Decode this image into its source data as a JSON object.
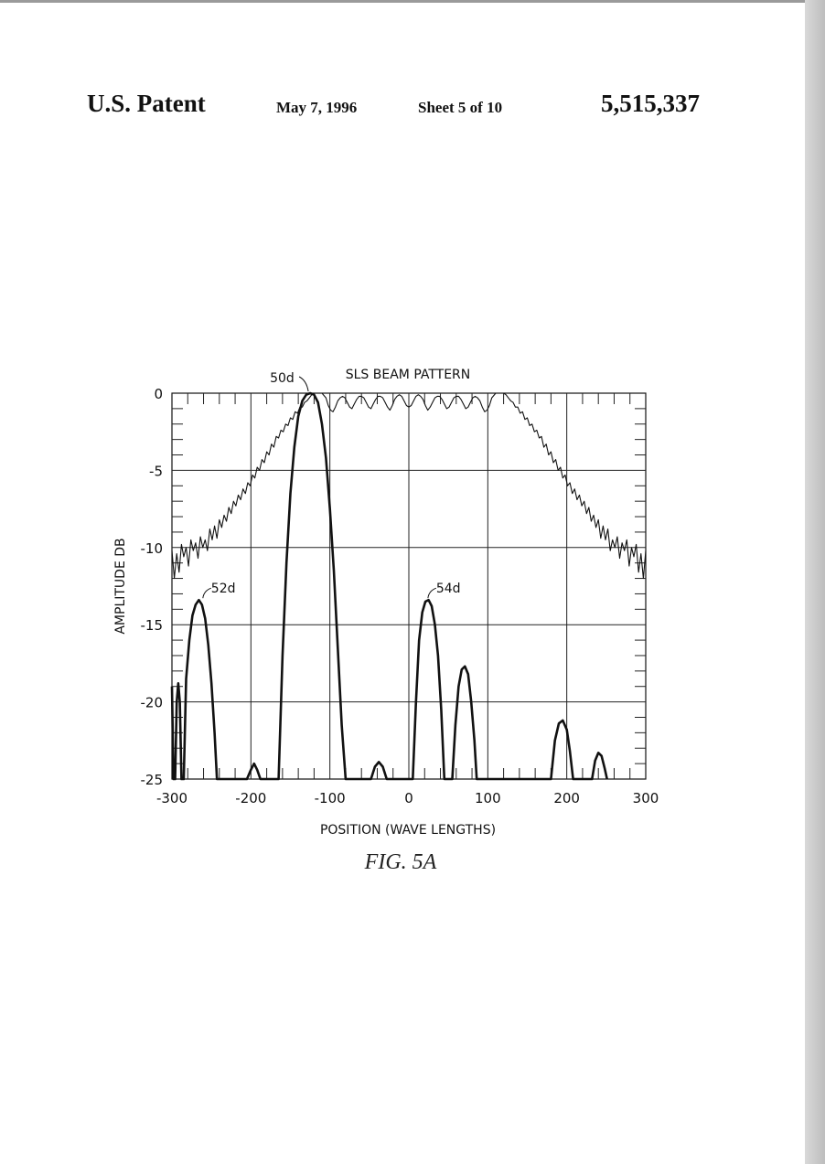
{
  "header": {
    "patent_label": "U.S. Patent",
    "date": "May 7, 1996",
    "sheet": "Sheet 5 of 10",
    "patent_number": "5,515,337"
  },
  "figure": {
    "label": "FIG.  5A",
    "callouts": [
      {
        "text": "50d",
        "x": -125,
        "y": 0
      },
      {
        "text": "52d",
        "x": -262,
        "y": -13.4
      },
      {
        "text": "54d",
        "x": 23,
        "y": -13.4
      }
    ]
  },
  "chart_data": {
    "type": "line",
    "title": "SLS BEAM PATTERN",
    "xlabel": "POSITION (WAVE LENGTHS)",
    "ylabel": "AMPLITUDE DB",
    "xlim": [
      -300,
      300
    ],
    "ylim": [
      -25,
      0
    ],
    "xticks": [
      -300,
      -200,
      -100,
      0,
      100,
      200,
      300
    ],
    "yticks": [
      0,
      -5,
      -10,
      -15,
      -20,
      -25
    ],
    "xtick_labels": [
      "-300",
      "-200",
      "-100",
      "0",
      "100",
      "200",
      "300"
    ],
    "ytick_labels": [
      "0",
      "-5",
      "-10",
      "-15",
      "-20",
      "-25"
    ],
    "grid": true,
    "series": [
      {
        "line_width": "thin",
        "points": [
          [
            -300,
            -10.2
          ],
          [
            -297,
            -12.0
          ],
          [
            -294,
            -10.4
          ],
          [
            -291,
            -11.6
          ],
          [
            -288,
            -9.8
          ],
          [
            -285,
            -10.6
          ],
          [
            -282,
            -10.0
          ],
          [
            -279,
            -11.2
          ],
          [
            -276,
            -9.5
          ],
          [
            -273,
            -10.2
          ],
          [
            -270,
            -9.7
          ],
          [
            -267,
            -10.7
          ],
          [
            -264,
            -9.3
          ],
          [
            -261,
            -10.0
          ],
          [
            -258,
            -9.5
          ],
          [
            -255,
            -10.2
          ],
          [
            -252,
            -8.8
          ],
          [
            -249,
            -9.5
          ],
          [
            -246,
            -8.6
          ],
          [
            -243,
            -9.4
          ],
          [
            -240,
            -8.2
          ],
          [
            -237,
            -8.7
          ],
          [
            -234,
            -7.9
          ],
          [
            -231,
            -8.3
          ],
          [
            -228,
            -7.4
          ],
          [
            -225,
            -7.8
          ],
          [
            -222,
            -7.0
          ],
          [
            -219,
            -7.3
          ],
          [
            -216,
            -6.6
          ],
          [
            -213,
            -6.9
          ],
          [
            -210,
            -6.2
          ],
          [
            -207,
            -6.5
          ],
          [
            -204,
            -5.8
          ],
          [
            -201,
            -6.0
          ],
          [
            -198,
            -5.3
          ],
          [
            -195,
            -5.5
          ],
          [
            -192,
            -4.8
          ],
          [
            -189,
            -5.0
          ],
          [
            -186,
            -4.3
          ],
          [
            -183,
            -4.5
          ],
          [
            -180,
            -3.8
          ],
          [
            -177,
            -4.0
          ],
          [
            -174,
            -3.3
          ],
          [
            -171,
            -3.5
          ],
          [
            -168,
            -2.8
          ],
          [
            -165,
            -2.9
          ],
          [
            -162,
            -2.4
          ],
          [
            -159,
            -2.5
          ],
          [
            -156,
            -2.0
          ],
          [
            -153,
            -2.1
          ],
          [
            -150,
            -1.6
          ],
          [
            -147,
            -1.7
          ],
          [
            -144,
            -1.2
          ],
          [
            -141,
            -1.3
          ],
          [
            -138,
            -0.9
          ],
          [
            -135,
            -0.9
          ],
          [
            -132,
            -0.6
          ],
          [
            -129,
            -0.5
          ],
          [
            -126,
            -0.3
          ],
          [
            -123,
            -0.1
          ],
          [
            -120,
            0.0
          ],
          [
            -110,
            0.0
          ],
          [
            -105,
            -0.3
          ],
          [
            -102,
            -0.8
          ],
          [
            -99,
            -1.1
          ],
          [
            -96,
            -1.2
          ],
          [
            -93,
            -0.9
          ],
          [
            -90,
            -0.5
          ],
          [
            -87,
            -0.3
          ],
          [
            -84,
            -0.2
          ],
          [
            -81,
            -0.3
          ],
          [
            -78,
            -0.6
          ],
          [
            -75,
            -0.9
          ],
          [
            -72,
            -1.0
          ],
          [
            -69,
            -0.7
          ],
          [
            -66,
            -0.4
          ],
          [
            -63,
            -0.2
          ],
          [
            -60,
            -0.2
          ],
          [
            -57,
            -0.3
          ],
          [
            -54,
            -0.6
          ],
          [
            -51,
            -0.9
          ],
          [
            -48,
            -1.0
          ],
          [
            -45,
            -0.7
          ],
          [
            -42,
            -0.4
          ],
          [
            -39,
            -0.2
          ],
          [
            -36,
            -0.2
          ],
          [
            -33,
            -0.3
          ],
          [
            -30,
            -0.6
          ],
          [
            -27,
            -0.9
          ],
          [
            -24,
            -1.1
          ],
          [
            -21,
            -0.8
          ],
          [
            -18,
            -0.4
          ],
          [
            -15,
            -0.2
          ],
          [
            -12,
            -0.1
          ],
          [
            -9,
            -0.2
          ],
          [
            -6,
            -0.5
          ],
          [
            -3,
            -0.8
          ],
          [
            0,
            -0.9
          ],
          [
            3,
            -0.8
          ],
          [
            6,
            -0.5
          ],
          [
            9,
            -0.2
          ],
          [
            12,
            -0.1
          ],
          [
            15,
            -0.2
          ],
          [
            18,
            -0.4
          ],
          [
            21,
            -0.8
          ],
          [
            24,
            -1.1
          ],
          [
            27,
            -0.9
          ],
          [
            30,
            -0.6
          ],
          [
            33,
            -0.3
          ],
          [
            36,
            -0.2
          ],
          [
            39,
            -0.2
          ],
          [
            42,
            -0.4
          ],
          [
            45,
            -0.7
          ],
          [
            48,
            -1.0
          ],
          [
            51,
            -0.9
          ],
          [
            54,
            -0.6
          ],
          [
            57,
            -0.3
          ],
          [
            60,
            -0.2
          ],
          [
            63,
            -0.2
          ],
          [
            66,
            -0.4
          ],
          [
            69,
            -0.7
          ],
          [
            72,
            -1.0
          ],
          [
            75,
            -0.9
          ],
          [
            78,
            -0.6
          ],
          [
            81,
            -0.3
          ],
          [
            84,
            -0.2
          ],
          [
            87,
            -0.3
          ],
          [
            90,
            -0.5
          ],
          [
            93,
            -0.9
          ],
          [
            96,
            -1.2
          ],
          [
            99,
            -1.1
          ],
          [
            102,
            -0.8
          ],
          [
            105,
            -0.3
          ],
          [
            110,
            0.0
          ],
          [
            120,
            0.0
          ],
          [
            123,
            -0.1
          ],
          [
            126,
            -0.3
          ],
          [
            129,
            -0.5
          ],
          [
            132,
            -0.6
          ],
          [
            135,
            -0.9
          ],
          [
            138,
            -0.9
          ],
          [
            141,
            -1.3
          ],
          [
            144,
            -1.2
          ],
          [
            147,
            -1.7
          ],
          [
            150,
            -1.6
          ],
          [
            153,
            -2.1
          ],
          [
            156,
            -2.0
          ],
          [
            159,
            -2.5
          ],
          [
            162,
            -2.4
          ],
          [
            165,
            -2.9
          ],
          [
            168,
            -2.8
          ],
          [
            171,
            -3.5
          ],
          [
            174,
            -3.3
          ],
          [
            177,
            -4.0
          ],
          [
            180,
            -3.8
          ],
          [
            183,
            -4.5
          ],
          [
            186,
            -4.3
          ],
          [
            189,
            -5.0
          ],
          [
            192,
            -4.8
          ],
          [
            195,
            -5.5
          ],
          [
            198,
            -5.3
          ],
          [
            201,
            -6.0
          ],
          [
            204,
            -5.8
          ],
          [
            207,
            -6.5
          ],
          [
            210,
            -6.2
          ],
          [
            213,
            -6.9
          ],
          [
            216,
            -6.6
          ],
          [
            219,
            -7.3
          ],
          [
            222,
            -7.0
          ],
          [
            225,
            -7.8
          ],
          [
            228,
            -7.4
          ],
          [
            231,
            -8.3
          ],
          [
            234,
            -7.9
          ],
          [
            237,
            -8.7
          ],
          [
            240,
            -8.2
          ],
          [
            243,
            -9.4
          ],
          [
            246,
            -8.6
          ],
          [
            249,
            -9.5
          ],
          [
            252,
            -8.8
          ],
          [
            255,
            -10.2
          ],
          [
            258,
            -9.5
          ],
          [
            261,
            -10.0
          ],
          [
            264,
            -9.3
          ],
          [
            267,
            -10.7
          ],
          [
            270,
            -9.7
          ],
          [
            273,
            -10.2
          ],
          [
            276,
            -9.5
          ],
          [
            279,
            -11.2
          ],
          [
            282,
            -10.0
          ],
          [
            285,
            -10.6
          ],
          [
            288,
            -9.8
          ],
          [
            291,
            -11.6
          ],
          [
            294,
            -10.4
          ],
          [
            297,
            -12.0
          ],
          [
            300,
            -10.2
          ]
        ]
      },
      {
        "line_width": "thick",
        "points": [
          [
            -300,
            -19.0
          ],
          [
            -298,
            -25.0
          ],
          [
            -296,
            -25.0
          ],
          [
            -294,
            -20.0
          ],
          [
            -292,
            -18.8
          ],
          [
            -290,
            -20.0
          ],
          [
            -288,
            -25.0
          ],
          [
            -285,
            -25.0
          ],
          [
            -282,
            -18.5
          ],
          [
            -278,
            -16.0
          ],
          [
            -274,
            -14.4
          ],
          [
            -270,
            -13.7
          ],
          [
            -266,
            -13.4
          ],
          [
            -262,
            -13.7
          ],
          [
            -258,
            -14.6
          ],
          [
            -254,
            -16.3
          ],
          [
            -250,
            -18.8
          ],
          [
            -246,
            -22.0
          ],
          [
            -243,
            -25.0
          ],
          [
            -205,
            -25.0
          ],
          [
            -200,
            -24.4
          ],
          [
            -196,
            -24.0
          ],
          [
            -192,
            -24.4
          ],
          [
            -188,
            -25.0
          ],
          [
            -165,
            -25.0
          ],
          [
            -160,
            -17.0
          ],
          [
            -155,
            -11.0
          ],
          [
            -150,
            -6.5
          ],
          [
            -145,
            -3.5
          ],
          [
            -140,
            -1.5
          ],
          [
            -135,
            -0.5
          ],
          [
            -130,
            -0.1
          ],
          [
            -125,
            0.0
          ],
          [
            -120,
            -0.1
          ],
          [
            -115,
            -0.6
          ],
          [
            -110,
            -2.0
          ],
          [
            -105,
            -4.2
          ],
          [
            -100,
            -7.5
          ],
          [
            -95,
            -11.5
          ],
          [
            -90,
            -16.5
          ],
          [
            -85,
            -21.5
          ],
          [
            -80,
            -25.0
          ],
          [
            -48,
            -25.0
          ],
          [
            -43,
            -24.2
          ],
          [
            -38,
            -23.9
          ],
          [
            -33,
            -24.2
          ],
          [
            -28,
            -25.0
          ],
          [
            5,
            -25.0
          ],
          [
            9,
            -20.0
          ],
          [
            13,
            -16.0
          ],
          [
            17,
            -14.2
          ],
          [
            21,
            -13.5
          ],
          [
            25,
            -13.4
          ],
          [
            29,
            -13.8
          ],
          [
            33,
            -15.0
          ],
          [
            37,
            -17.0
          ],
          [
            41,
            -20.5
          ],
          [
            45,
            -25.0
          ],
          [
            55,
            -25.0
          ],
          [
            59,
            -21.5
          ],
          [
            63,
            -19.0
          ],
          [
            67,
            -17.9
          ],
          [
            71,
            -17.7
          ],
          [
            75,
            -18.2
          ],
          [
            79,
            -20.0
          ],
          [
            83,
            -22.5
          ],
          [
            86,
            -25.0
          ],
          [
            180,
            -25.0
          ],
          [
            185,
            -22.5
          ],
          [
            190,
            -21.4
          ],
          [
            195,
            -21.2
          ],
          [
            200,
            -21.8
          ],
          [
            204,
            -23.2
          ],
          [
            208,
            -25.0
          ],
          [
            232,
            -25.0
          ],
          [
            236,
            -23.8
          ],
          [
            240,
            -23.3
          ],
          [
            244,
            -23.5
          ],
          [
            248,
            -24.3
          ],
          [
            251,
            -25.0
          ]
        ]
      }
    ]
  }
}
